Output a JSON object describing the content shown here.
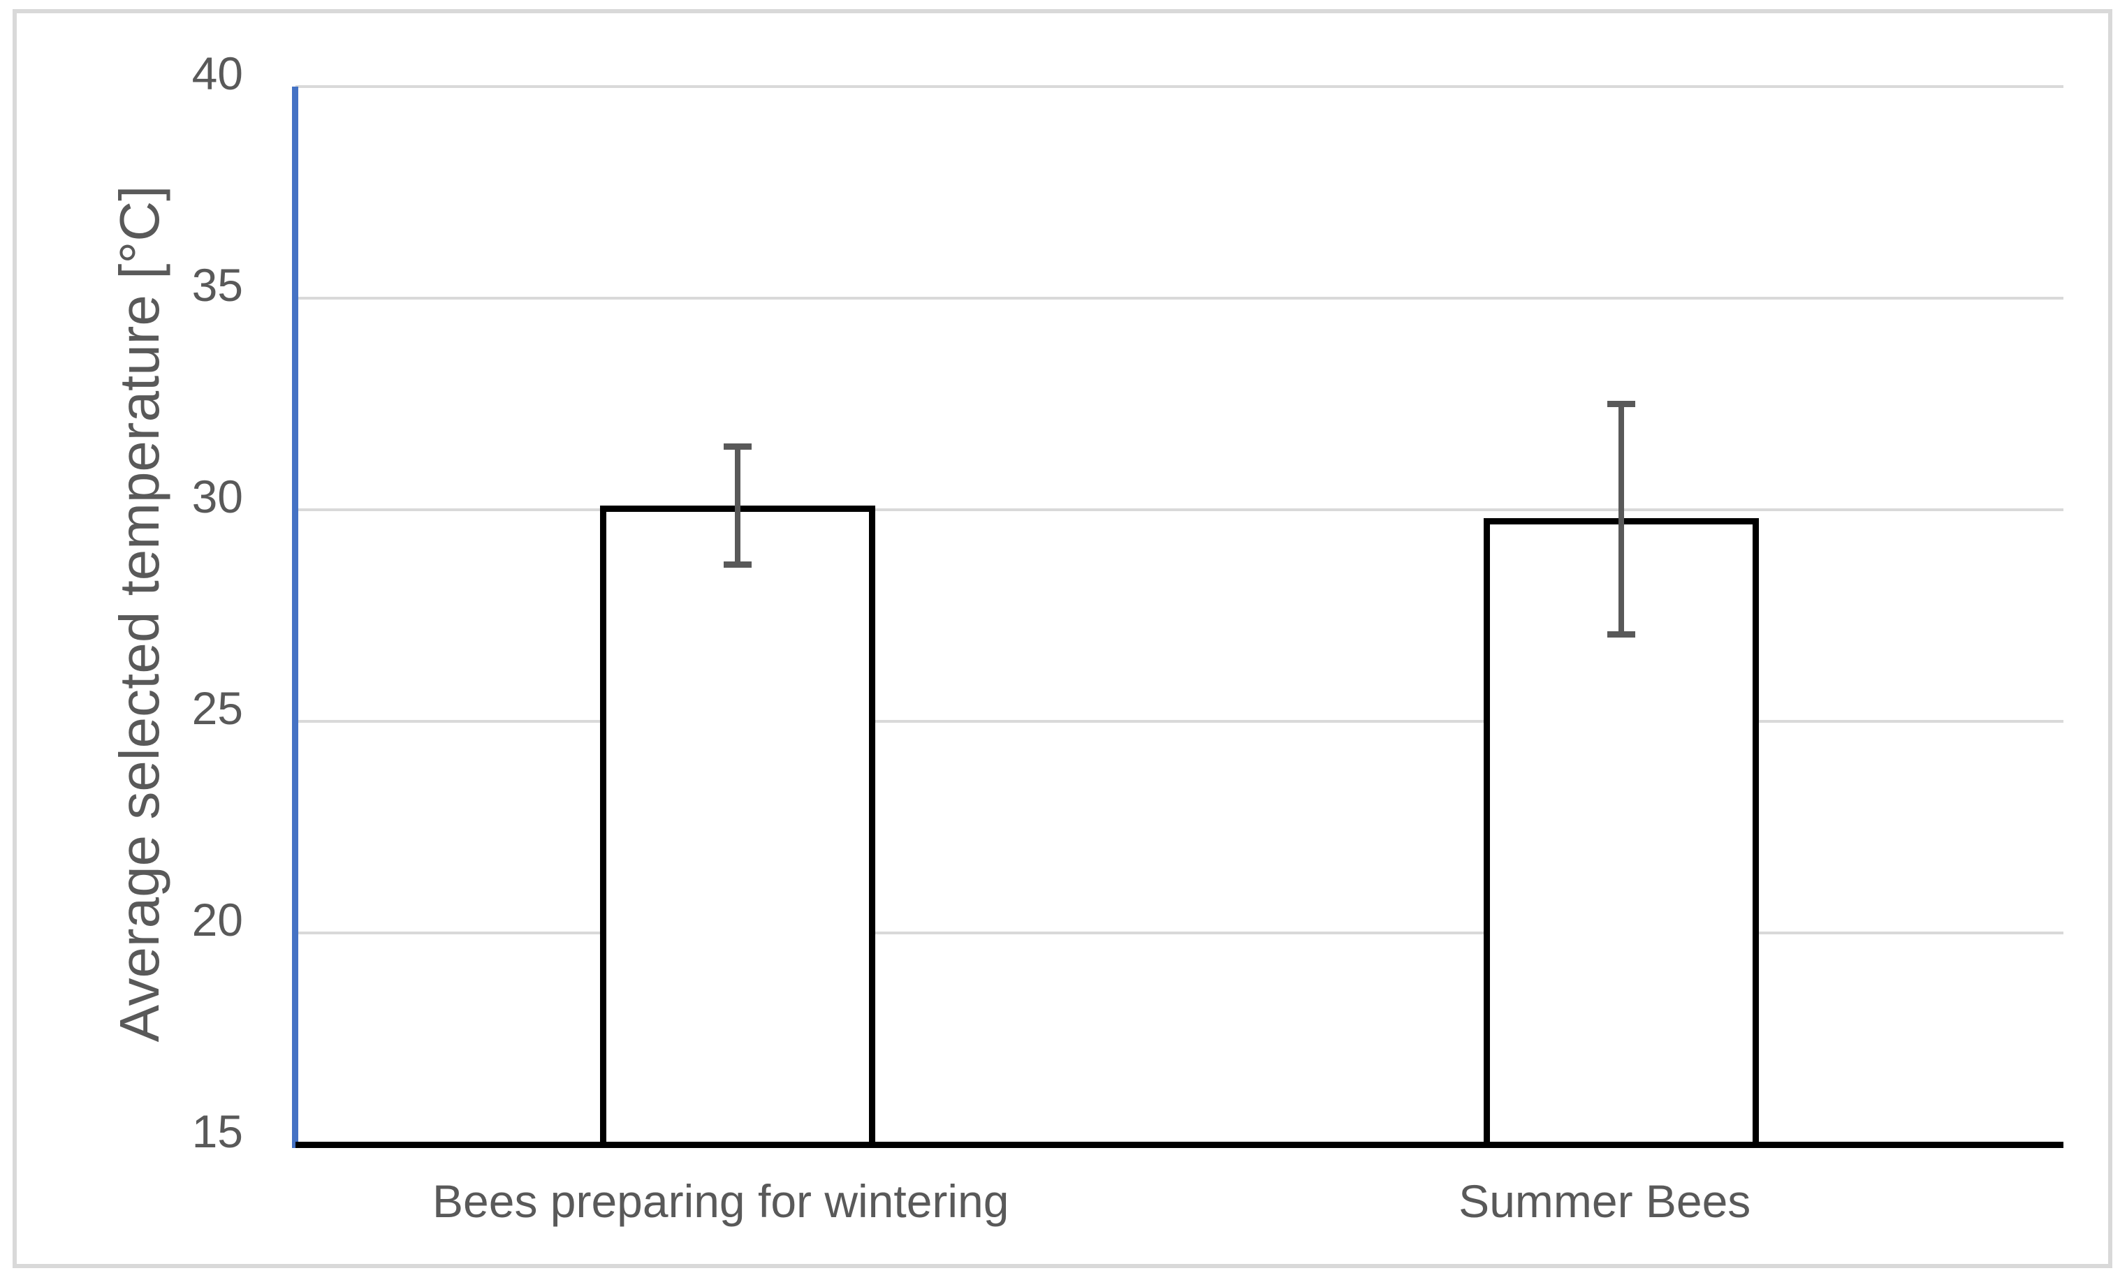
{
  "chart_data": {
    "type": "bar",
    "title": "",
    "categories": [
      "Bees preparing for wintering",
      "Summer Bees"
    ],
    "values": [
      30.1,
      29.8
    ],
    "error_bars": {
      "plus": [
        1.4,
        2.7
      ],
      "minus": [
        1.4,
        2.75
      ]
    },
    "xlabel": "",
    "ylabel": "Average selected temperature [°C]",
    "ylim": [
      15,
      40
    ],
    "ytick_step": 5,
    "yticks": [
      15,
      20,
      25,
      30,
      35,
      40
    ],
    "grid": "horizontal-only",
    "legend": "none",
    "bar_style": "white fill, black outline",
    "error_bar_style": "capped, both directions"
  },
  "colors": {
    "background": "#ffffff",
    "frame_border": "#d9d9d9",
    "gridline": "#d9d9d9",
    "y_axis_line": "#4472c4",
    "x_axis_line": "#000000",
    "bar_fill": "#ffffff",
    "bar_border": "#000000",
    "error_bar": "#595959",
    "text": "#595959"
  }
}
